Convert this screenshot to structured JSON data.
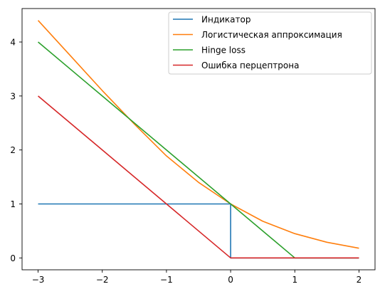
{
  "chart_data": {
    "type": "line",
    "title": "",
    "xlabel": "",
    "ylabel": "",
    "xlim": [
      -3.25,
      2.25
    ],
    "ylim": [
      -0.22,
      4.62
    ],
    "xticks": [
      -3,
      -2,
      -1,
      0,
      1,
      2
    ],
    "xtick_labels": [
      "−3",
      "−2",
      "−1",
      "0",
      "1",
      "2"
    ],
    "yticks": [
      0,
      1,
      2,
      3,
      4
    ],
    "ytick_labels": [
      "0",
      "1",
      "2",
      "3",
      "4"
    ],
    "grid": false,
    "legend": {
      "position": "top-right"
    },
    "series": [
      {
        "name": "Индикатор",
        "color": "#1f77b4",
        "x": [
          -3,
          -2,
          -1,
          0,
          0,
          1,
          2
        ],
        "y": [
          1,
          1,
          1,
          1,
          0,
          0,
          0
        ]
      },
      {
        "name": "Логистическая аппроксимация",
        "color": "#ff7f0e",
        "x": [
          -3,
          -2.5,
          -2,
          -1.5,
          -1,
          -0.5,
          0,
          0.5,
          1,
          1.5,
          2
        ],
        "y": [
          4.4,
          3.75,
          3.1,
          2.48,
          1.89,
          1.4,
          1.0,
          0.68,
          0.45,
          0.29,
          0.18
        ]
      },
      {
        "name": "Hinge loss",
        "color": "#2ca02c",
        "x": [
          -3,
          1,
          2
        ],
        "y": [
          4,
          0,
          0
        ]
      },
      {
        "name": "Ошибка перцептрона",
        "color": "#d62728",
        "x": [
          -3,
          0,
          2
        ],
        "y": [
          3,
          0,
          0
        ]
      }
    ]
  }
}
